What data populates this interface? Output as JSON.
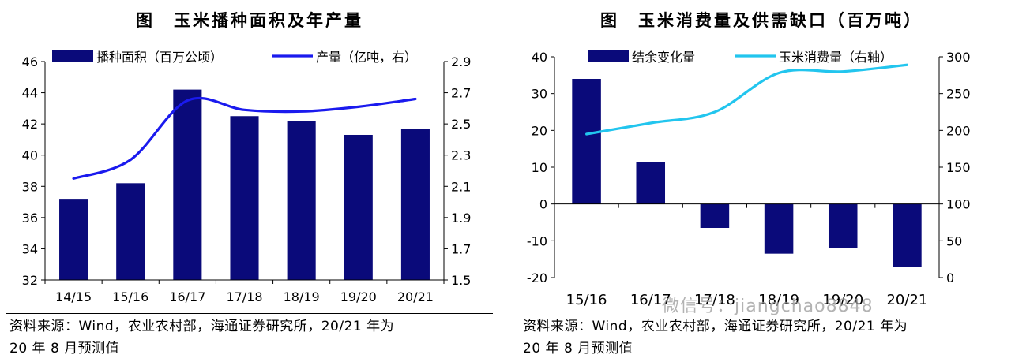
{
  "chart_data": [
    {
      "type": "bar+line",
      "title": "图　玉米播种面积及年产量",
      "categories": [
        "14/15",
        "15/16",
        "16/17",
        "17/18",
        "18/19",
        "19/20",
        "20/21"
      ],
      "series": [
        {
          "name": "播种面积（百万公顷）",
          "kind": "bar",
          "axis": "left",
          "color": "#0a0a7a",
          "values": [
            37.2,
            38.2,
            44.2,
            42.5,
            42.2,
            41.3,
            41.7
          ]
        },
        {
          "name": "产量（亿吨，右）",
          "kind": "line",
          "axis": "right",
          "color": "#1a1aee",
          "values": [
            2.15,
            2.27,
            2.65,
            2.59,
            2.58,
            2.61,
            2.66
          ]
        }
      ],
      "ylim_left": [
        32,
        46
      ],
      "yticks_left": [
        "32",
        "34",
        "36",
        "38",
        "40",
        "42",
        "44",
        "46"
      ],
      "ylim_right": [
        1.5,
        2.9
      ],
      "yticks_right": [
        "1.5",
        "1.7",
        "1.9",
        "2.1",
        "2.3",
        "2.5",
        "2.7",
        "2.9"
      ],
      "legend_position": "top",
      "source_line1": "资料来源：Wind，农业农村部，海通证券研究所，20/21 年为",
      "source_line2": "20 年 8 月预测值"
    },
    {
      "type": "bar+line",
      "title": "图　玉米消费量及供需缺口（百万吨）",
      "categories": [
        "15/16",
        "16/17",
        "17/18",
        "18/19",
        "19/20",
        "20/21"
      ],
      "series": [
        {
          "name": "结余变化量",
          "kind": "bar",
          "axis": "left",
          "color": "#0a0a7a",
          "values": [
            34,
            11.5,
            -6.5,
            -13.5,
            -12,
            -17
          ]
        },
        {
          "name": "玉米消费量（右轴）",
          "kind": "line",
          "axis": "right",
          "color": "#22c5ee",
          "values": [
            195,
            210,
            225,
            278,
            280,
            289
          ]
        }
      ],
      "ylim_left": [
        -20,
        40
      ],
      "yticks_left": [
        "-20",
        "-10",
        "0",
        "10",
        "20",
        "30",
        "40"
      ],
      "ylim_right": [
        0,
        300
      ],
      "yticks_right": [
        "0",
        "50",
        "100",
        "150",
        "200",
        "250",
        "300"
      ],
      "legend_position": "top",
      "source_line1": "资料来源：Wind，农业农村部，海通证券研究所，20/21 年为",
      "source_line2": "20 年 8 月预测值"
    }
  ],
  "watermark": "微信号：jiangchao8848"
}
